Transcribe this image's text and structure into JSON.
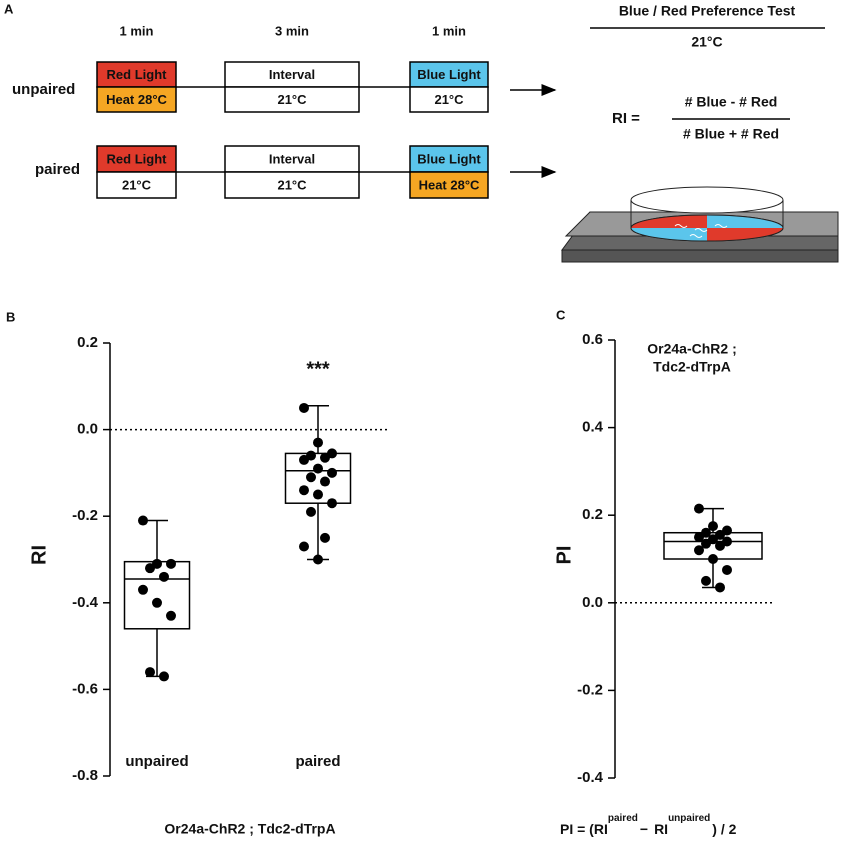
{
  "panel_a": {
    "label": "A",
    "durations": [
      "1 min",
      "3 min",
      "1 min"
    ],
    "rows": [
      {
        "name": "unpaired",
        "cells": [
          [
            "Red Light",
            "Heat 28°C"
          ],
          [
            "Interval",
            "21°C"
          ],
          [
            "Blue Light",
            "21°C"
          ]
        ]
      },
      {
        "name": "paired",
        "cells": [
          [
            "Red Light",
            "21°C"
          ],
          [
            "Interval",
            "21°C"
          ],
          [
            "Blue Light",
            "Heat 28°C"
          ]
        ]
      }
    ],
    "test": {
      "title": "Blue / Red Preference Test",
      "temperature": "21°C",
      "formula_lhs": "RI =",
      "numerator": "# Blue - # Red",
      "denominator": "# Blue + # Red"
    }
  },
  "chart_data": [
    {
      "type": "box",
      "panel_label": "B",
      "ylabel": "RI",
      "xlabel": "Or24a-ChR2 ; Tdc2-dTrpA",
      "annotation": "***",
      "ylim": [
        -0.8,
        0.2
      ],
      "yticks": [
        -0.8,
        -0.6,
        -0.4,
        -0.2,
        {
          "value": 0,
          "label": "0.0"
        },
        0.2
      ],
      "reference_line": 0,
      "categories": [
        "unpaired",
        "paired"
      ],
      "boxes": [
        {
          "whislo": -0.57,
          "q1": -0.46,
          "med": -0.345,
          "q3": -0.305,
          "whishi": -0.21,
          "points": [
            -0.21,
            -0.31,
            -0.31,
            -0.32,
            -0.34,
            -0.37,
            -0.4,
            -0.43,
            -0.56,
            -0.57
          ]
        },
        {
          "whislo": -0.3,
          "q1": -0.17,
          "med": -0.095,
          "q3": -0.055,
          "whishi": 0.055,
          "points": [
            0.05,
            -0.03,
            -0.055,
            -0.06,
            -0.065,
            -0.07,
            -0.09,
            -0.1,
            -0.11,
            -0.12,
            -0.14,
            -0.15,
            -0.17,
            -0.19,
            -0.25,
            -0.27,
            -0.3
          ]
        }
      ]
    },
    {
      "type": "box",
      "panel_label": "C",
      "ylabel": "PI",
      "annotation_lines": [
        "Or24a-ChR2 ;",
        "Tdc2-dTrpA"
      ],
      "ylim": [
        -0.4,
        0.6
      ],
      "yticks": [
        -0.4,
        -0.2,
        {
          "value": 0,
          "label": "0.0"
        },
        0.2,
        0.4,
        0.6
      ],
      "reference_line": 0,
      "boxes": [
        {
          "whislo": 0.035,
          "q1": 0.1,
          "med": 0.14,
          "q3": 0.16,
          "whishi": 0.215,
          "points": [
            0.215,
            0.175,
            0.165,
            0.16,
            0.155,
            0.15,
            0.145,
            0.14,
            0.135,
            0.13,
            0.12,
            0.1,
            0.075,
            0.05,
            0.035
          ]
        }
      ],
      "formula": {
        "lhs": "PI = (RI",
        "sup1": "paired",
        "minus": "−",
        "ri": "RI",
        "sup2": "unpaired",
        "tail": ") / 2"
      }
    }
  ]
}
